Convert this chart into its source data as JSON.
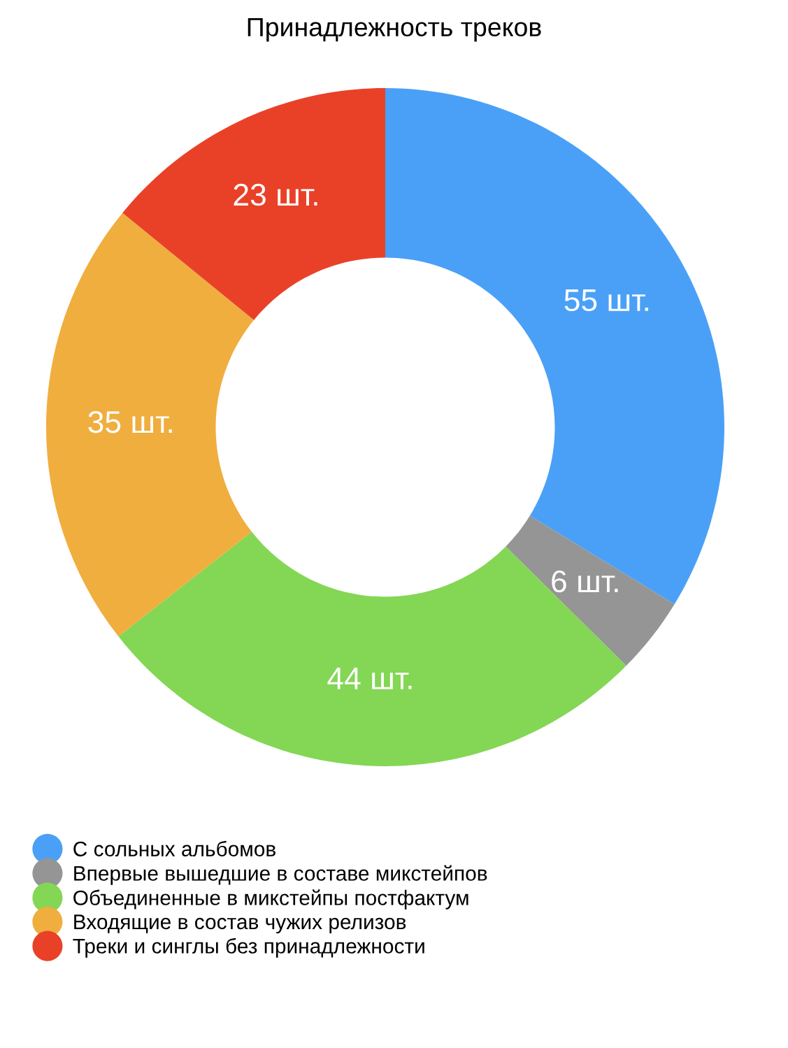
{
  "chart_data": {
    "type": "donut",
    "title": "Принадлежность треков",
    "categories": [
      "С сольных альбомов",
      "Впервые вышедшие в составе микстейпов",
      "Объединенные в микстейпы постфактум",
      "Входящие в состав чужих релизов",
      "Треки и синглы без принадлежности"
    ],
    "values": [
      55,
      6,
      44,
      35,
      23
    ],
    "value_labels": [
      "55 шт.",
      "6 шт.",
      "44 шт.",
      "35 шт.",
      "23 шт."
    ],
    "colors": [
      "#4aa0f6",
      "#959595",
      "#84d655",
      "#f0ae3f",
      "#e94128"
    ],
    "legend": "bottom"
  }
}
